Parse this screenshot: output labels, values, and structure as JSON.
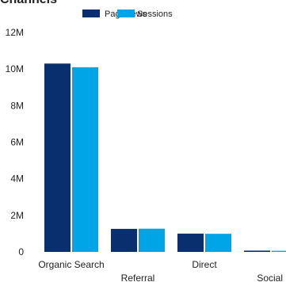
{
  "title": "Channels",
  "chart_data": {
    "type": "bar",
    "categories": [
      "Organic Search",
      "Referral",
      "Direct",
      "Social"
    ],
    "series": [
      {
        "name": "Pageviews",
        "color": "#0a2f6e",
        "values": [
          10300000,
          1260000,
          1000000,
          70000
        ]
      },
      {
        "name": "Sessions",
        "color": "#00a5e8",
        "values": [
          10100000,
          1270000,
          990000,
          60000
        ]
      }
    ],
    "ylim": [
      0,
      12000000
    ],
    "y_ticks": [
      0,
      2000000,
      4000000,
      6000000,
      8000000,
      10000000,
      12000000
    ],
    "y_tick_labels": [
      "0",
      "2M",
      "4M",
      "6M",
      "8M",
      "10M",
      "12M"
    ],
    "legend_position": "top",
    "grid": false
  }
}
